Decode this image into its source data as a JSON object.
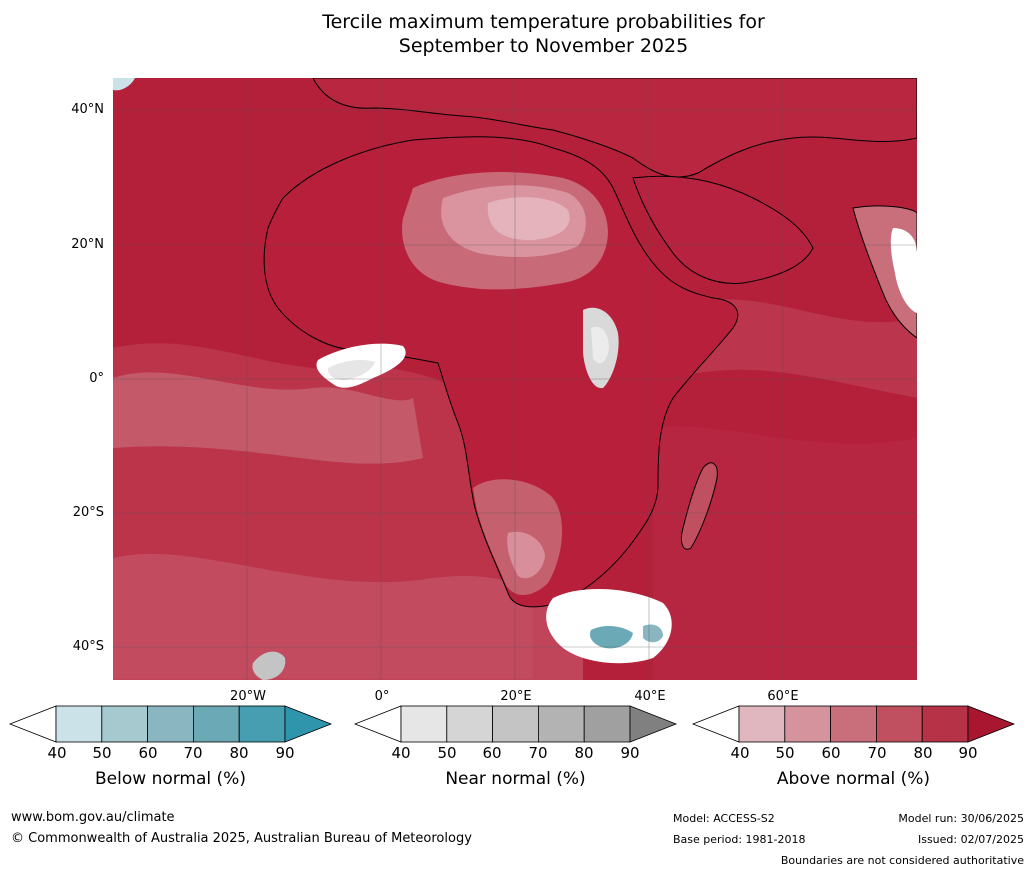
{
  "title_line1": "Tercile maximum temperature probabilities for",
  "title_line2": "September to November 2025",
  "lat_labels": [
    "40°N",
    "20°N",
    "0°",
    "20°S",
    "40°S"
  ],
  "lon_labels": [
    "20°W",
    "0°",
    "20°E",
    "40°E",
    "60°E"
  ],
  "colors": {
    "above": [
      "#ffffff",
      "#e0b7bf",
      "#d4939d",
      "#c96f7b",
      "#c0505f",
      "#b63246",
      "#a8162f"
    ],
    "near": [
      "#ffffff",
      "#e6e6e6",
      "#d5d5d5",
      "#c4c4c4",
      "#b3b3b3",
      "#a0a0a0",
      "#808080"
    ],
    "below": [
      "#ffffff",
      "#cbe2e8",
      "#a6c8cf",
      "#89b6c1",
      "#6aa9b5",
      "#479eb0",
      "#2f95ad"
    ]
  },
  "colorbars": [
    {
      "name": "below",
      "label": "Below normal (%)",
      "ticks": [
        "40",
        "50",
        "60",
        "70",
        "80",
        "90"
      ]
    },
    {
      "name": "near",
      "label": "Near normal (%)",
      "ticks": [
        "40",
        "50",
        "60",
        "70",
        "80",
        "90"
      ]
    },
    {
      "name": "above",
      "label": "Above normal (%)",
      "ticks": [
        "40",
        "50",
        "60",
        "70",
        "80",
        "90"
      ]
    }
  ],
  "footer": {
    "website": "www.bom.gov.au/climate",
    "copyright": "© Commonwealth of Australia 2025, Australian Bureau of Meteorology",
    "model": "Model: ACCESS-S2",
    "base_period": "Base period: 1981-2018",
    "model_run": "Model run: 30/06/2025",
    "issued": "Issued: 02/07/2025",
    "disclaimer": "Boundaries are not considered authoritative"
  }
}
